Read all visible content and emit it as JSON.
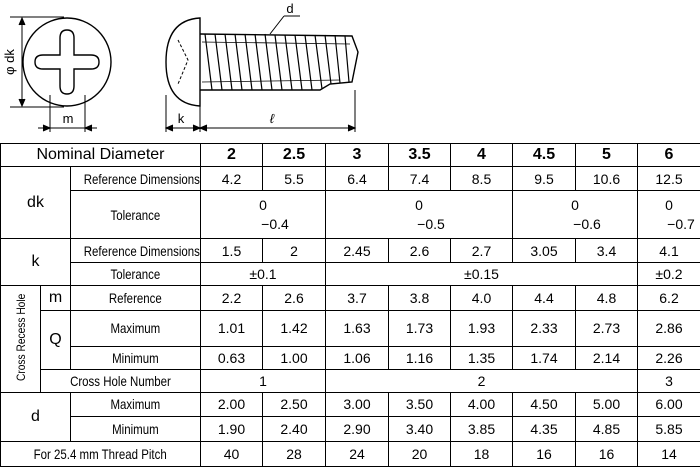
{
  "drawing": {
    "phi_dk": "φ dk",
    "d": "d",
    "m": "m",
    "k": "k",
    "l": "ℓ"
  },
  "table": {
    "nominal_diameter": {
      "label": "Nominal Diameter",
      "values": [
        "2",
        "2.5",
        "3",
        "3.5",
        "4",
        "4.5",
        "5",
        "6"
      ]
    },
    "dk": {
      "label": "dk",
      "reference": {
        "label": "Reference Dimensions",
        "values": [
          "4.2",
          "5.5",
          "6.4",
          "7.4",
          "8.5",
          "9.5",
          "10.6",
          "12.5"
        ]
      },
      "tolerance": {
        "label": "Tolerance",
        "values": [
          [
            "0",
            "−0.4"
          ],
          [
            "0",
            "−0.5"
          ],
          [
            "0",
            "−0.6"
          ],
          [
            "0",
            "−0.7"
          ]
        ]
      }
    },
    "k": {
      "label": "k",
      "reference": {
        "label": "Reference Dimensions",
        "values": [
          "1.5",
          "2",
          "2.45",
          "2.6",
          "2.7",
          "3.05",
          "3.4",
          "4.1"
        ]
      },
      "tolerance": {
        "label": "Tolerance",
        "values": [
          "±0.1",
          "±0.15",
          "±0.2"
        ]
      }
    },
    "cross_recess_hole": {
      "label": "Cross Recess Hole",
      "m": {
        "label": "m",
        "reference": {
          "label": "Reference",
          "values": [
            "2.2",
            "2.6",
            "3.7",
            "3.8",
            "4.0",
            "4.4",
            "4.8",
            "6.2"
          ]
        }
      },
      "q": {
        "label": "Q",
        "maximum": {
          "label": "Maximum",
          "values": [
            "1.01",
            "1.42",
            "1.63",
            "1.73",
            "1.93",
            "2.33",
            "2.73",
            "2.86"
          ]
        },
        "minimum": {
          "label": "Minimum",
          "values": [
            "0.63",
            "1.00",
            "1.06",
            "1.16",
            "1.35",
            "1.74",
            "2.14",
            "2.26"
          ]
        }
      },
      "cross_hole_number": {
        "label": "Cross Hole Number",
        "values": [
          "1",
          "2",
          "3"
        ]
      }
    },
    "d": {
      "label": "d",
      "maximum": {
        "label": "Maximum",
        "values": [
          "2.00",
          "2.50",
          "3.00",
          "3.50",
          "4.00",
          "4.50",
          "5.00",
          "6.00"
        ]
      },
      "minimum": {
        "label": "Minimum",
        "values": [
          "1.90",
          "2.40",
          "2.90",
          "3.40",
          "3.85",
          "4.35",
          "4.85",
          "5.85"
        ]
      }
    },
    "thread_pitch": {
      "label": "For 25.4 mm Thread Pitch",
      "values": [
        "40",
        "28",
        "24",
        "20",
        "18",
        "16",
        "16",
        "14"
      ]
    }
  }
}
